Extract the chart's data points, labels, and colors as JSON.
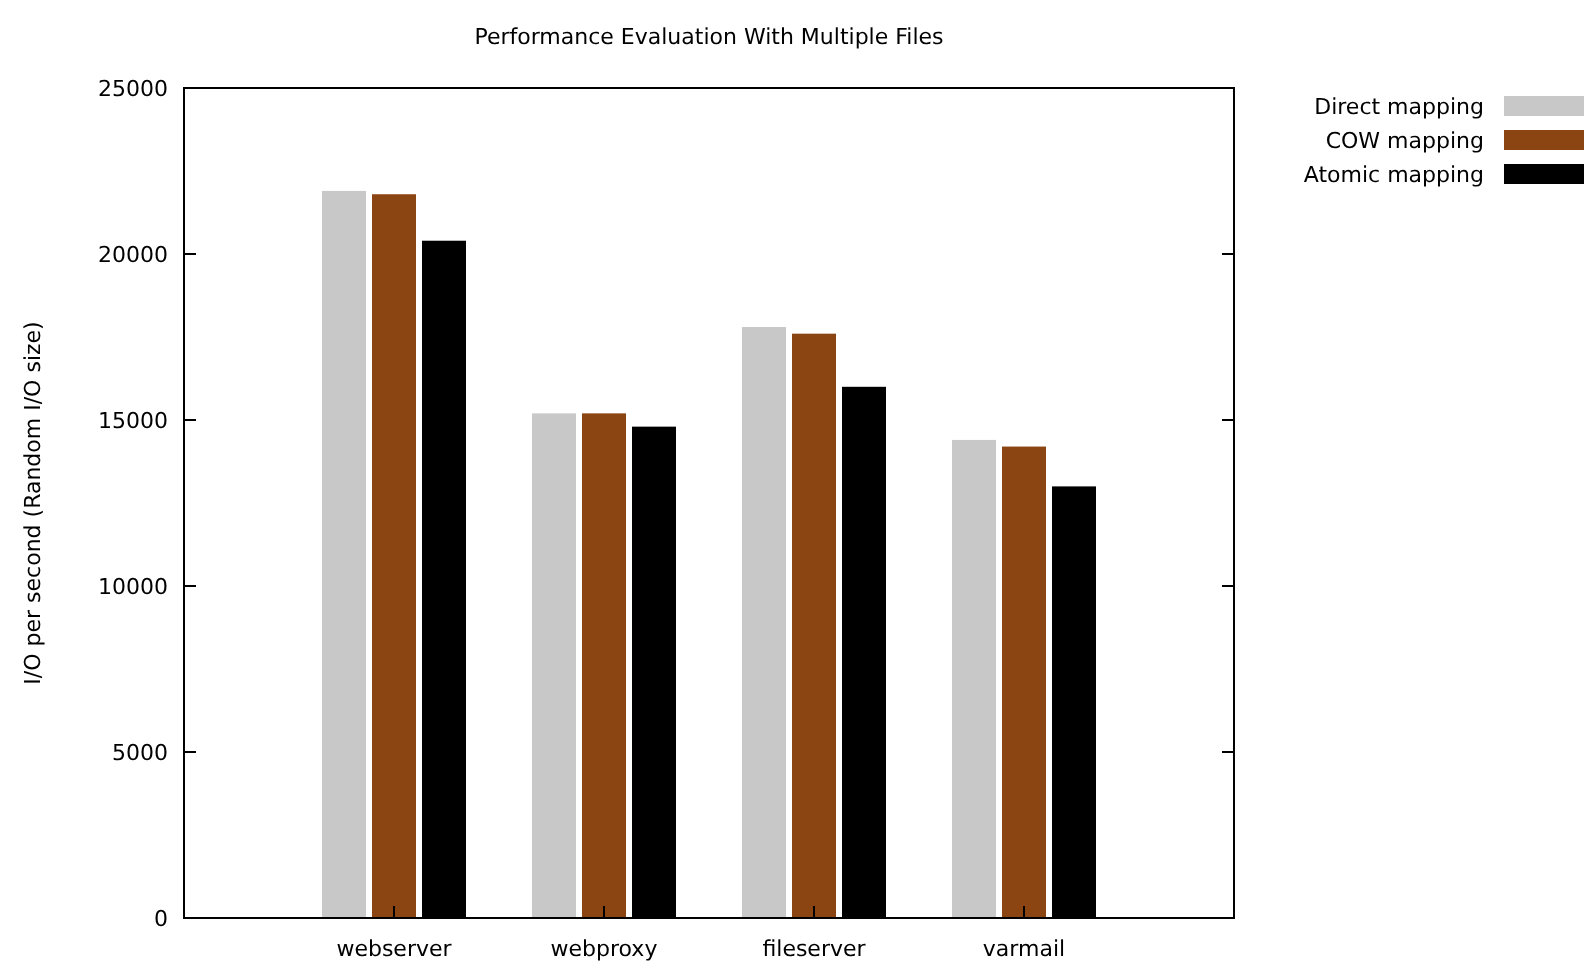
{
  "chart_data": {
    "type": "bar",
    "title": "Performance Evaluation With Multiple Files",
    "ylabel": "I/O per second (Random I/O size)",
    "categories": [
      "webserver",
      "webproxy",
      "fileserver",
      "varmail"
    ],
    "series": [
      {
        "name": "Direct mapping",
        "color": "#c8c8c8",
        "values": [
          21900,
          15200,
          17800,
          14400
        ]
      },
      {
        "name": "COW mapping",
        "color": "#8b4513",
        "values": [
          21800,
          15200,
          17600,
          14200
        ]
      },
      {
        "name": "Atomic mapping",
        "color": "#000000",
        "values": [
          20400,
          14800,
          16000,
          13000
        ]
      }
    ],
    "ylim": [
      0,
      25000
    ],
    "yticks": [
      0,
      5000,
      10000,
      15000,
      20000,
      25000
    ],
    "grid": false,
    "legend": "top right"
  }
}
